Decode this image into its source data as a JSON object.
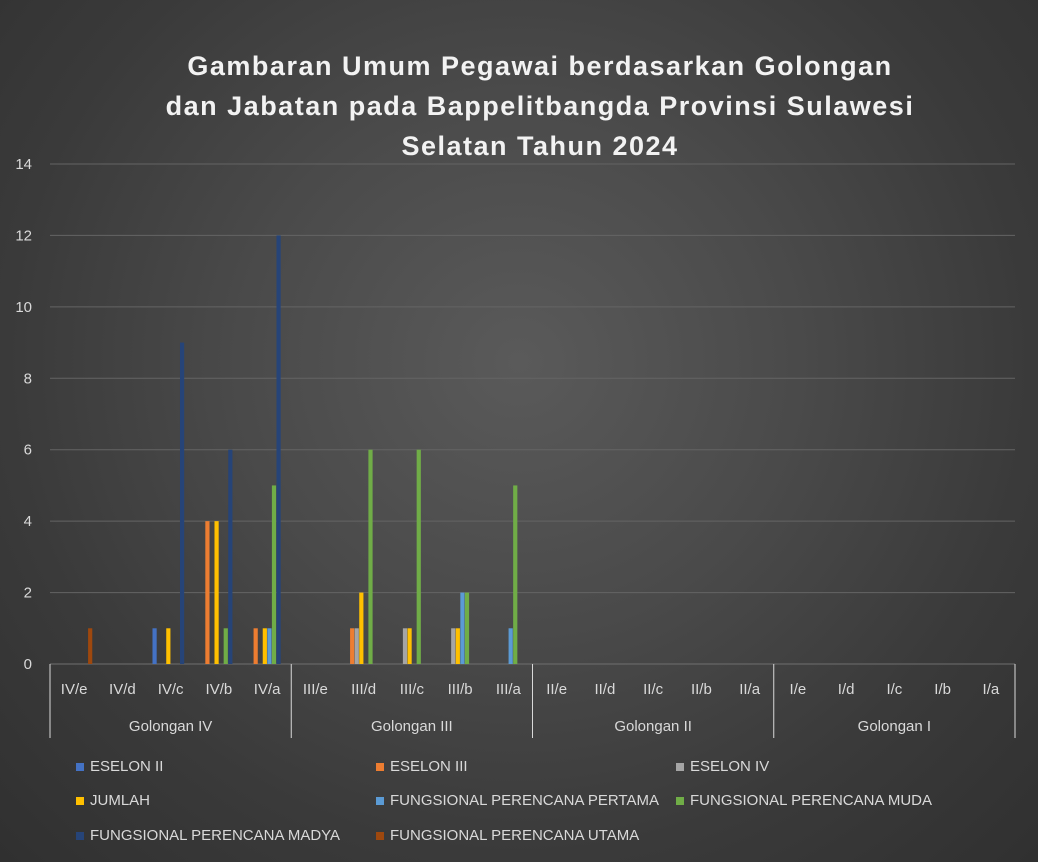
{
  "chart_data": {
    "type": "bar",
    "title_lines": [
      "Gambaran Umum Pegawai berdasarkan  Golongan",
      "dan Jabatan pada Bappelitbangda Provinsi Sulawesi",
      "Selatan Tahun 2024"
    ],
    "ylim": [
      0,
      14
    ],
    "yticks": [
      "0",
      "2",
      "4",
      "6",
      "8",
      "10",
      "12",
      "14"
    ],
    "grid": true,
    "legend_position": "bottom",
    "groups": [
      {
        "name": "Golongan IV",
        "categories": [
          "IV/e",
          "IV/d",
          "IV/c",
          "IV/b",
          "IV/a"
        ]
      },
      {
        "name": "Golongan III",
        "categories": [
          "III/e",
          "III/d",
          "III/c",
          "III/b",
          "III/a"
        ]
      },
      {
        "name": "Golongan II",
        "categories": [
          "II/e",
          "II/d",
          "II/c",
          "II/b",
          "II/a"
        ]
      },
      {
        "name": "Golongan I",
        "categories": [
          "I/e",
          "I/d",
          "I/c",
          "I/b",
          "I/a"
        ]
      }
    ],
    "series": [
      {
        "name": "ESELON II",
        "color": "#4472c4",
        "values": [
          0,
          0,
          1,
          0,
          0,
          0,
          0,
          0,
          0,
          0,
          0,
          0,
          0,
          0,
          0,
          0,
          0,
          0,
          0,
          0
        ]
      },
      {
        "name": "ESELON III",
        "color": "#ed7d31",
        "values": [
          0,
          0,
          0,
          4,
          1,
          0,
          1,
          0,
          0,
          0,
          0,
          0,
          0,
          0,
          0,
          0,
          0,
          0,
          0,
          0
        ]
      },
      {
        "name": "ESELON IV",
        "color": "#a5a5a5",
        "values": [
          0,
          0,
          0,
          0,
          0,
          0,
          1,
          1,
          1,
          0,
          0,
          0,
          0,
          0,
          0,
          0,
          0,
          0,
          0,
          0
        ]
      },
      {
        "name": "JUMLAH",
        "color": "#ffc000",
        "values": [
          0,
          0,
          1,
          4,
          1,
          0,
          2,
          1,
          1,
          0,
          0,
          0,
          0,
          0,
          0,
          0,
          0,
          0,
          0,
          0
        ]
      },
      {
        "name": "FUNGSIONAL PERENCANA PERTAMA",
        "color": "#5b9bd5",
        "values": [
          0,
          0,
          0,
          0,
          1,
          0,
          0,
          0,
          2,
          1,
          0,
          0,
          0,
          0,
          0,
          0,
          0,
          0,
          0,
          0
        ]
      },
      {
        "name": "FUNGSIONAL PERENCANA MUDA",
        "color": "#70ad47",
        "values": [
          0,
          0,
          0,
          1,
          5,
          0,
          6,
          6,
          2,
          5,
          0,
          0,
          0,
          0,
          0,
          0,
          0,
          0,
          0,
          0
        ]
      },
      {
        "name": "FUNGSIONAL PERENCANA MADYA",
        "color": "#264478",
        "values": [
          0,
          0,
          9,
          6,
          12,
          0,
          0,
          0,
          0,
          0,
          0,
          0,
          0,
          0,
          0,
          0,
          0,
          0,
          0,
          0
        ]
      },
      {
        "name": "FUNGSIONAL PERENCANA UTAMA",
        "color": "#9e480e",
        "values": [
          1,
          0,
          0,
          0,
          0,
          0,
          0,
          0,
          0,
          0,
          0,
          0,
          0,
          0,
          0,
          0,
          0,
          0,
          0,
          0
        ]
      }
    ]
  }
}
